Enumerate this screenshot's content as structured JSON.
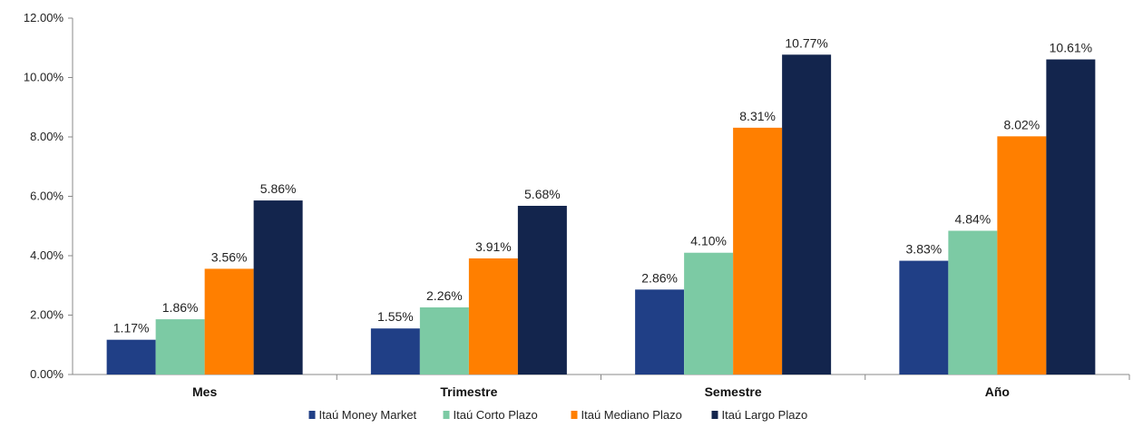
{
  "chart_data": {
    "type": "bar",
    "categories": [
      "Mes",
      "Trimestre",
      "Semestre",
      "Año"
    ],
    "series": [
      {
        "name": "Itaú Money Market",
        "color": "#203f86",
        "values": [
          1.17,
          1.55,
          2.86,
          3.83
        ],
        "labels": [
          "1.17%",
          "1.55%",
          "2.86%",
          "3.83%"
        ]
      },
      {
        "name": "Itaú Corto Plazo",
        "color": "#7ccaa4",
        "values": [
          1.86,
          2.26,
          4.1,
          4.84
        ],
        "labels": [
          "1.86%",
          "2.26%",
          "4.10%",
          "4.84%"
        ]
      },
      {
        "name": "Itaú Mediano Plazo",
        "color": "#ff7f00",
        "values": [
          3.56,
          3.91,
          8.31,
          8.02
        ],
        "labels": [
          "3.56%",
          "3.91%",
          "8.31%",
          "8.02%"
        ]
      },
      {
        "name": "Itaú Largo Plazo",
        "color": "#13254d",
        "values": [
          5.86,
          5.68,
          10.77,
          10.61
        ],
        "labels": [
          "5.86%",
          "5.68%",
          "10.77%",
          "10.61%"
        ]
      }
    ],
    "yticks": [
      "0.00%",
      "2.00%",
      "4.00%",
      "6.00%",
      "8.00%",
      "10.00%",
      "12.00%"
    ],
    "ylim": [
      0,
      12
    ],
    "grid": false,
    "legend_position": "bottom",
    "title": "",
    "xlabel": "",
    "ylabel": ""
  }
}
